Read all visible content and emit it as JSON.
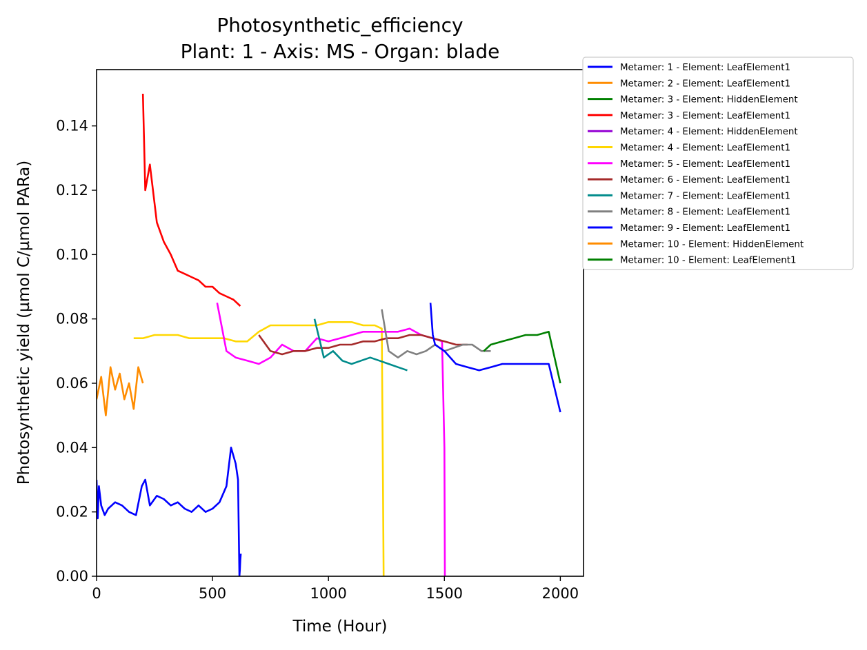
{
  "chart_data": {
    "type": "line",
    "title": "Photosynthetic_efficiency",
    "subtitle": "Plant: 1 - Axis: MS - Organ: blade",
    "xlabel": "Time (Hour)",
    "ylabel": "Photosynthetic yield (µmol C/µmol PARa)",
    "xlim": [
      0,
      2100
    ],
    "ylim": [
      0,
      0.1575
    ],
    "xticks": [
      0,
      500,
      1000,
      1500,
      2000
    ],
    "xtick_labels": [
      "0",
      "500",
      "1000",
      "1500",
      "2000"
    ],
    "yticks": [
      0,
      0.02,
      0.04,
      0.06,
      0.08,
      0.1,
      0.12,
      0.14
    ],
    "ytick_labels": [
      "0.00",
      "0.02",
      "0.04",
      "0.06",
      "0.08",
      "0.10",
      "0.12",
      "0.14"
    ],
    "grid": false,
    "legend_position": "outside-right",
    "series": [
      {
        "name": "Metamer: 1 - Element: LeafElement1",
        "color": "#0000ff",
        "x": [
          0,
          5,
          10,
          20,
          35,
          50,
          80,
          110,
          140,
          170,
          195,
          210,
          230,
          260,
          290,
          320,
          350,
          380,
          410,
          440,
          470,
          500,
          530,
          560,
          580,
          600,
          610,
          616,
          618,
          620,
          622
        ],
        "y": [
          0.03,
          0.018,
          0.028,
          0.022,
          0.019,
          0.021,
          0.023,
          0.022,
          0.02,
          0.019,
          0.028,
          0.03,
          0.022,
          0.025,
          0.024,
          0.022,
          0.023,
          0.021,
          0.02,
          0.022,
          0.02,
          0.021,
          0.023,
          0.028,
          0.04,
          0.035,
          0.03,
          0,
          0.002,
          0.005,
          0.007
        ]
      },
      {
        "name": "Metamer: 2 - Element: LeafElement1",
        "color": "#ff8c00",
        "x": [
          0,
          20,
          40,
          60,
          80,
          100,
          120,
          140,
          160,
          180,
          200
        ],
        "y": [
          0.055,
          0.062,
          0.05,
          0.065,
          0.058,
          0.063,
          0.055,
          0.06,
          0.052,
          0.065,
          0.06
        ]
      },
      {
        "name": "Metamer: 3 - Element: HiddenElement",
        "color": "#008000",
        "x": [],
        "y": []
      },
      {
        "name": "Metamer: 3 - Element: LeafElement1",
        "color": "#ff0000",
        "x": [
          200,
          210,
          230,
          260,
          290,
          320,
          350,
          380,
          410,
          440,
          470,
          500,
          530,
          560,
          590,
          620
        ],
        "y": [
          0.15,
          0.12,
          0.128,
          0.11,
          0.104,
          0.1,
          0.095,
          0.094,
          0.093,
          0.092,
          0.09,
          0.09,
          0.088,
          0.087,
          0.086,
          0.084
        ]
      },
      {
        "name": "Metamer: 4 - Element: HiddenElement",
        "color": "#9400d3",
        "x": [],
        "y": []
      },
      {
        "name": "Metamer: 4 - Element: LeafElement1",
        "color": "#ffd700",
        "x": [
          160,
          200,
          250,
          300,
          350,
          400,
          450,
          500,
          550,
          600,
          650,
          700,
          750,
          800,
          850,
          900,
          950,
          1000,
          1050,
          1100,
          1150,
          1200,
          1230,
          1235,
          1238
        ],
        "y": [
          0.074,
          0.074,
          0.075,
          0.075,
          0.075,
          0.074,
          0.074,
          0.074,
          0.074,
          0.073,
          0.073,
          0.076,
          0.078,
          0.078,
          0.078,
          0.078,
          0.078,
          0.079,
          0.079,
          0.079,
          0.078,
          0.078,
          0.077,
          0.03,
          0
        ]
      },
      {
        "name": "Metamer: 5 - Element: LeafElement1",
        "color": "#ff00ff",
        "x": [
          520,
          560,
          600,
          650,
          700,
          750,
          800,
          850,
          900,
          950,
          1000,
          1050,
          1100,
          1150,
          1200,
          1250,
          1300,
          1350,
          1400,
          1450,
          1490,
          1500,
          1502
        ],
        "y": [
          0.085,
          0.07,
          0.068,
          0.067,
          0.066,
          0.068,
          0.072,
          0.07,
          0.07,
          0.074,
          0.073,
          0.074,
          0.075,
          0.076,
          0.076,
          0.076,
          0.076,
          0.077,
          0.075,
          0.074,
          0.073,
          0.04,
          0
        ]
      },
      {
        "name": "Metamer: 6 - Element: LeafElement1",
        "color": "#a52a2a",
        "x": [
          700,
          750,
          800,
          850,
          900,
          950,
          1000,
          1050,
          1100,
          1150,
          1200,
          1250,
          1300,
          1350,
          1400,
          1450,
          1500,
          1550,
          1600
        ],
        "y": [
          0.075,
          0.07,
          0.069,
          0.07,
          0.07,
          0.071,
          0.071,
          0.072,
          0.072,
          0.073,
          0.073,
          0.074,
          0.074,
          0.075,
          0.075,
          0.074,
          0.073,
          0.072,
          0.072
        ]
      },
      {
        "name": "Metamer: 7 - Element: LeafElement1",
        "color": "#008b8b",
        "x": [
          940,
          980,
          1020,
          1060,
          1100,
          1140,
          1180,
          1220,
          1260,
          1300,
          1340
        ],
        "y": [
          0.08,
          0.068,
          0.07,
          0.067,
          0.066,
          0.067,
          0.068,
          0.067,
          0.066,
          0.065,
          0.064
        ]
      },
      {
        "name": "Metamer: 8 - Element: LeafElement1",
        "color": "#808080",
        "x": [
          1230,
          1260,
          1300,
          1340,
          1380,
          1420,
          1460,
          1500,
          1540,
          1580,
          1620,
          1660,
          1700
        ],
        "y": [
          0.083,
          0.07,
          0.068,
          0.07,
          0.069,
          0.07,
          0.072,
          0.07,
          0.071,
          0.072,
          0.072,
          0.07,
          0.07
        ]
      },
      {
        "name": "Metamer: 9 - Element: LeafElement1",
        "color": "#0000ff",
        "x": [
          1440,
          1450,
          1460,
          1500,
          1550,
          1600,
          1650,
          1700,
          1750,
          1800,
          1850,
          1900,
          1950,
          2000
        ],
        "y": [
          0.085,
          0.075,
          0.072,
          0.07,
          0.066,
          0.065,
          0.064,
          0.065,
          0.066,
          0.066,
          0.066,
          0.066,
          0.066,
          0.051
        ]
      },
      {
        "name": "Metamer: 10 - Element: HiddenElement",
        "color": "#ff8c00",
        "x": [],
        "y": []
      },
      {
        "name": "Metamer: 10 - Element: LeafElement1",
        "color": "#008000",
        "x": [
          1670,
          1700,
          1750,
          1800,
          1850,
          1900,
          1950,
          2000
        ],
        "y": [
          0.07,
          0.072,
          0.073,
          0.074,
          0.075,
          0.075,
          0.076,
          0.06
        ]
      }
    ]
  }
}
